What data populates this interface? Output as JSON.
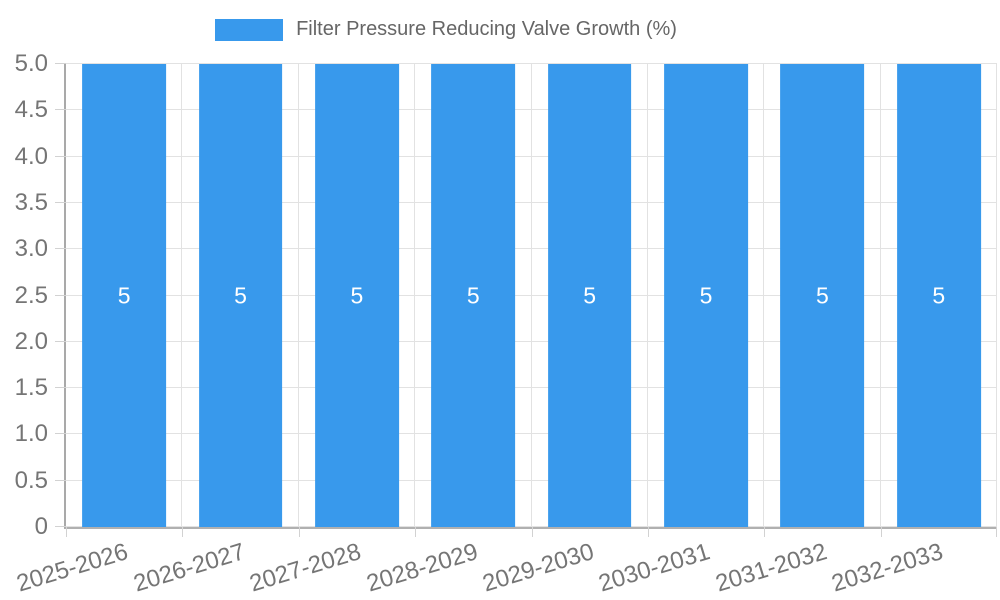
{
  "legend": {
    "label": "Filter Pressure Reducing Valve Growth (%)",
    "color": "#3899ec"
  },
  "chart_data": {
    "type": "bar",
    "title": "Filter Pressure Reducing Valve Growth (%)",
    "categories": [
      "2025-2026",
      "2026-2027",
      "2027-2028",
      "2028-2029",
      "2029-2030",
      "2030-2031",
      "2031-2032",
      "2032-2033"
    ],
    "series": [
      {
        "name": "Filter Pressure Reducing Valve Growth (%)",
        "values": [
          5,
          5,
          5,
          5,
          5,
          5,
          5,
          5
        ]
      }
    ],
    "bar_value_labels": [
      "5",
      "5",
      "5",
      "5",
      "5",
      "5",
      "5",
      "5"
    ],
    "xlabel": "",
    "ylabel": "",
    "ylim": [
      0,
      5
    ],
    "ytick_step": 0.5,
    "ytick_labels": [
      "0",
      "0.5",
      "1.0",
      "1.5",
      "2.0",
      "2.5",
      "3.0",
      "3.5",
      "4.0",
      "4.5",
      "5.0"
    ],
    "xtick_rotation_deg": -17,
    "grid": true,
    "legend_position": "top-center",
    "bar_color": "#3899ec",
    "bar_value_color": "#ffffff",
    "axis_text_color": "#757575",
    "grid_color": "#e2e2e2",
    "axis_line_color": "#a9a9a9"
  }
}
